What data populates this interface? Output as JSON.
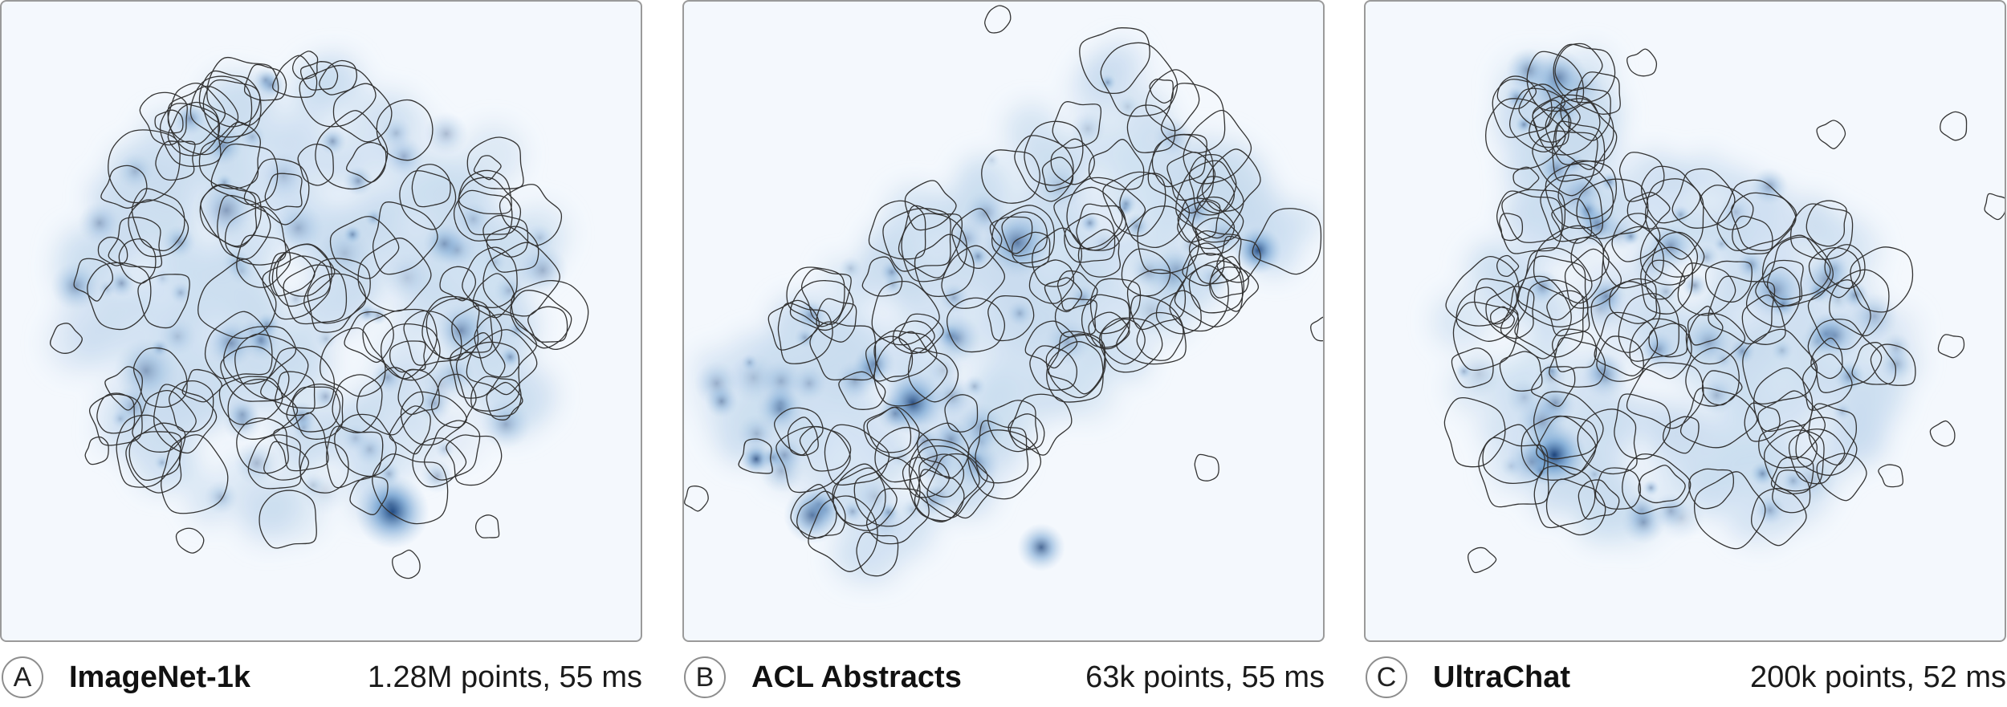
{
  "colors": {
    "background": "#f4f8fd",
    "density_light": "#c9dcef",
    "density_dark": "#08306b",
    "outline": "#333333",
    "frame": "#9a9a9a"
  },
  "panels": [
    {
      "letter": "A",
      "name": "ImageNet-1k",
      "stats": "1.28M points, 55 ms"
    },
    {
      "letter": "B",
      "name": "ACL Abstracts",
      "stats": "63k points, 55 ms"
    },
    {
      "letter": "C",
      "name": "UltraChat",
      "stats": "200k points, 52 ms"
    }
  ]
}
